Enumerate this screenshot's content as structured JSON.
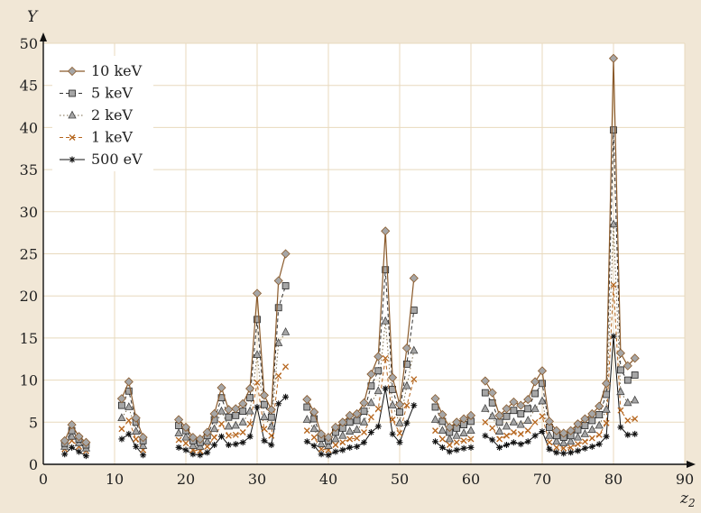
{
  "colors": {
    "background": "#f1e7d6",
    "plot_area": "#ffffff",
    "grid": "#e8d9bd",
    "axis": "#111111",
    "line_10keV": "#8a5a2b",
    "line_5keV": "#333333",
    "line_2keV": "#7a6a4a",
    "line_1keV": "#b5651d",
    "line_500eV": "#111111",
    "marker_gray": "#a6a6a6"
  },
  "chart_data": {
    "type": "line",
    "title": "",
    "xlabel": "z₂",
    "ylabel": "Y",
    "xlim": [
      0,
      90
    ],
    "ylim": [
      0,
      50
    ],
    "x_ticks": [
      0,
      10,
      20,
      30,
      40,
      50,
      60,
      70,
      80,
      90
    ],
    "y_ticks": [
      0,
      5,
      10,
      15,
      20,
      25,
      30,
      35,
      40,
      45,
      50
    ],
    "grid": true,
    "legend_position": "top-left",
    "x": [
      3,
      4,
      5,
      6,
      11,
      12,
      13,
      14,
      19,
      20,
      21,
      22,
      23,
      24,
      25,
      26,
      27,
      28,
      29,
      30,
      31,
      32,
      33,
      34,
      37,
      38,
      39,
      40,
      41,
      42,
      43,
      44,
      45,
      46,
      47,
      48,
      49,
      50,
      51,
      52,
      55,
      56,
      57,
      58,
      59,
      60,
      62,
      63,
      64,
      65,
      66,
      67,
      68,
      69,
      70,
      71,
      72,
      73,
      74,
      75,
      76,
      77,
      78,
      79,
      80,
      81,
      82,
      83
    ],
    "segments": [
      [
        0,
        3
      ],
      [
        4,
        7
      ],
      [
        8,
        23
      ],
      [
        24,
        39
      ],
      [
        40,
        45
      ],
      [
        46,
        67
      ]
    ],
    "series": [
      {
        "name": "10 keV",
        "marker": "diamond",
        "values": [
          2.8,
          4.7,
          3.3,
          2.6,
          7.8,
          9.8,
          5.5,
          3.2,
          5.3,
          4.4,
          3.2,
          3.0,
          3.8,
          6.0,
          9.1,
          6.5,
          6.6,
          7.2,
          9.0,
          20.3,
          8.2,
          6.5,
          21.8,
          25.0,
          7.7,
          6.2,
          3.6,
          3.2,
          4.4,
          5.0,
          5.8,
          6.0,
          7.3,
          10.7,
          12.8,
          27.7,
          10.3,
          7.1,
          13.8,
          22.1,
          7.8,
          5.9,
          4.4,
          5.0,
          5.4,
          5.8,
          9.9,
          8.5,
          5.8,
          6.6,
          7.4,
          7.0,
          7.7,
          9.8,
          11.1,
          5.1,
          4.0,
          3.7,
          4.0,
          4.8,
          5.4,
          6.0,
          6.9,
          9.6,
          48.2,
          13.2,
          11.7,
          12.6
        ]
      },
      {
        "name": "5 keV",
        "marker": "square",
        "values": [
          2.5,
          4.0,
          3.0,
          2.3,
          7.0,
          8.7,
          5.0,
          2.8,
          4.6,
          4.0,
          2.8,
          2.6,
          3.4,
          5.3,
          7.9,
          5.6,
          5.8,
          6.3,
          7.9,
          17.2,
          7.1,
          5.6,
          18.6,
          21.2,
          6.8,
          5.4,
          3.1,
          2.8,
          3.8,
          4.3,
          5.0,
          5.2,
          6.3,
          9.3,
          11.1,
          23.1,
          8.9,
          6.2,
          11.9,
          18.3,
          6.8,
          5.1,
          3.8,
          4.3,
          4.7,
          5.1,
          8.5,
          7.3,
          5.0,
          5.7,
          6.4,
          6.0,
          6.6,
          8.4,
          9.6,
          4.4,
          3.4,
          3.2,
          3.4,
          4.1,
          4.6,
          5.2,
          5.9,
          8.3,
          39.7,
          11.2,
          10.0,
          10.6
        ]
      },
      {
        "name": "2 keV",
        "marker": "triangle",
        "values": [
          2.1,
          3.3,
          2.5,
          1.9,
          5.5,
          6.8,
          3.9,
          2.2,
          3.7,
          3.2,
          2.2,
          2.1,
          2.7,
          4.2,
          6.3,
          4.5,
          4.6,
          5.0,
          6.3,
          13.0,
          5.6,
          4.5,
          14.4,
          15.7,
          5.3,
          4.2,
          2.4,
          2.2,
          3.0,
          3.4,
          3.9,
          4.1,
          5.0,
          7.3,
          8.7,
          17.0,
          7.0,
          4.9,
          9.3,
          13.5,
          5.3,
          4.0,
          3.0,
          3.4,
          3.7,
          4.0,
          6.6,
          5.7,
          3.9,
          4.5,
          5.0,
          4.7,
          5.2,
          6.6,
          7.5,
          3.4,
          2.7,
          2.5,
          2.7,
          3.2,
          3.6,
          4.1,
          4.6,
          6.5,
          28.5,
          8.6,
          7.3,
          7.6
        ]
      },
      {
        "name": "1 keV",
        "marker": "x",
        "values": [
          1.8,
          2.8,
          2.1,
          1.6,
          4.2,
          5.2,
          3.0,
          1.7,
          2.9,
          2.5,
          1.7,
          1.6,
          2.1,
          3.2,
          4.8,
          3.4,
          3.5,
          3.8,
          4.8,
          9.7,
          4.2,
          3.4,
          10.5,
          11.6,
          4.0,
          3.2,
          1.8,
          1.7,
          2.3,
          2.6,
          3.0,
          3.1,
          3.8,
          5.6,
          6.6,
          12.6,
          5.3,
          3.7,
          7.0,
          10.1,
          4.0,
          3.0,
          2.3,
          2.6,
          2.8,
          3.0,
          5.0,
          4.3,
          3.0,
          3.4,
          3.8,
          3.6,
          4.0,
          5.0,
          5.7,
          2.6,
          2.0,
          1.9,
          2.0,
          2.4,
          2.7,
          3.1,
          3.5,
          4.9,
          21.3,
          6.4,
          5.2,
          5.4
        ]
      },
      {
        "name": "500 eV",
        "marker": "star",
        "values": [
          1.2,
          2.0,
          1.5,
          1.0,
          3.0,
          3.6,
          2.1,
          1.1,
          2.0,
          1.7,
          1.2,
          1.1,
          1.4,
          2.3,
          3.3,
          2.3,
          2.4,
          2.6,
          3.3,
          6.8,
          2.8,
          2.3,
          7.2,
          8.0,
          2.7,
          2.2,
          1.2,
          1.1,
          1.5,
          1.7,
          2.0,
          2.1,
          2.6,
          3.8,
          4.5,
          9.0,
          3.6,
          2.6,
          4.9,
          7.0,
          2.7,
          2.0,
          1.5,
          1.7,
          1.9,
          2.0,
          3.4,
          2.9,
          2.0,
          2.3,
          2.6,
          2.4,
          2.7,
          3.4,
          3.9,
          1.8,
          1.4,
          1.3,
          1.4,
          1.6,
          1.9,
          2.1,
          2.4,
          3.3,
          15.2,
          4.4,
          3.5,
          3.6
        ]
      }
    ]
  }
}
